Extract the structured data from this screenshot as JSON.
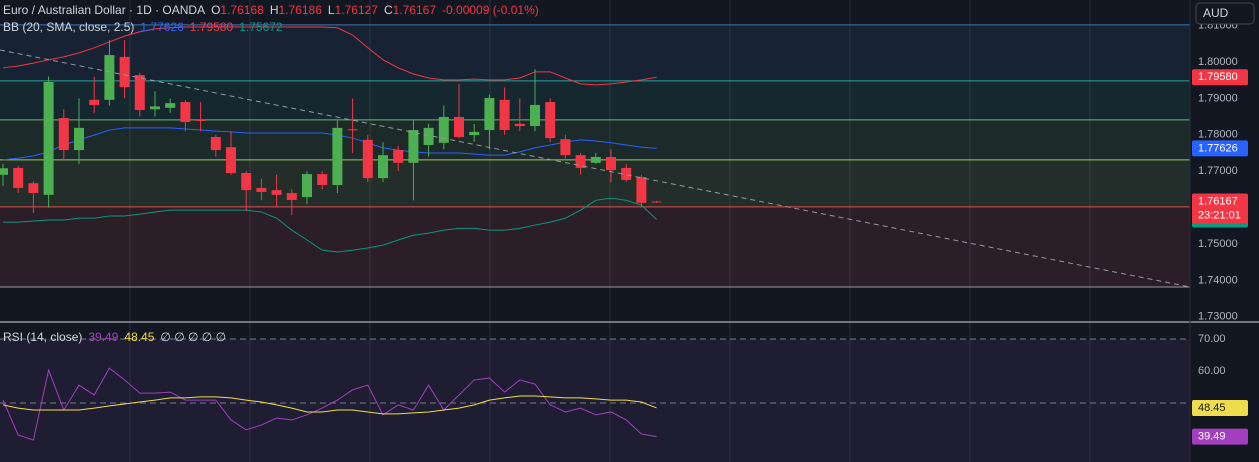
{
  "header": {
    "title": "Euro / Australian Dollar · 1D · OANDA",
    "ohlc": [
      {
        "label": "O",
        "value": "1.76168"
      },
      {
        "label": "H",
        "value": "1.76186"
      },
      {
        "label": "L",
        "value": "1.76127"
      },
      {
        "label": "C",
        "value": "1.76167"
      }
    ],
    "change": "-0.00009 (-0.01%)"
  },
  "currency_button": "AUD",
  "chart_data": [
    {
      "type": "candlestick",
      "indicator": "BB (20, SMA, close, 2.5)",
      "up_color": "#4caf50",
      "down_color": "#f23645",
      "open": [
        1.769,
        1.7709,
        1.7667,
        1.7635,
        1.7846,
        1.7758,
        1.7896,
        1.7896,
        1.8014,
        1.7964,
        1.787,
        1.7874,
        1.789,
        1.7841,
        1.7794,
        1.7766,
        1.7695,
        1.7654,
        1.7648,
        1.764,
        1.7629,
        1.7692,
        1.7662,
        1.7815,
        1.7786,
        1.7681,
        1.7758,
        1.7723,
        1.7772,
        1.7778,
        1.7849,
        1.7799,
        1.7813,
        1.7896,
        1.783,
        1.7824,
        1.789,
        1.7788,
        1.7744,
        1.7723,
        1.7739,
        1.7709,
        1.7684,
        1.76168
      ],
      "high": [
        1.772,
        1.7715,
        1.7672,
        1.796,
        1.787,
        1.79,
        1.796,
        1.806,
        1.806,
        1.797,
        1.792,
        1.79,
        1.7895,
        1.789,
        1.78,
        1.781,
        1.77,
        1.768,
        1.769,
        1.765,
        1.77,
        1.77,
        1.784,
        1.79,
        1.78,
        1.778,
        1.777,
        1.784,
        1.783,
        1.788,
        1.794,
        1.783,
        1.791,
        1.793,
        1.79,
        1.798,
        1.79,
        1.78,
        1.775,
        1.775,
        1.776,
        1.772,
        1.769,
        1.76186
      ],
      "low": [
        1.766,
        1.764,
        1.7585,
        1.76,
        1.773,
        1.772,
        1.786,
        1.788,
        1.79,
        1.785,
        1.785,
        1.786,
        1.781,
        1.781,
        1.774,
        1.769,
        1.759,
        1.762,
        1.76,
        1.758,
        1.761,
        1.765,
        1.764,
        1.775,
        1.767,
        1.767,
        1.77,
        1.762,
        1.774,
        1.776,
        1.779,
        1.778,
        1.776,
        1.78,
        1.781,
        1.781,
        1.778,
        1.7735,
        1.769,
        1.772,
        1.767,
        1.767,
        1.76,
        1.76127
      ],
      "close": [
        1.7708,
        1.7654,
        1.764,
        1.7945,
        1.7758,
        1.7819,
        1.7882,
        1.8019,
        1.7931,
        1.7868,
        1.7878,
        1.7887,
        1.7835,
        1.7838,
        1.7758,
        1.7695,
        1.7648,
        1.7643,
        1.7635,
        1.7621,
        1.7692,
        1.7662,
        1.7819,
        1.7813,
        1.7681,
        1.7744,
        1.7723,
        1.7813,
        1.7819,
        1.7849,
        1.7794,
        1.7808,
        1.7901,
        1.7813,
        1.7824,
        1.7882,
        1.7791,
        1.7744,
        1.7709,
        1.7739,
        1.7703,
        1.7676,
        1.7613,
        1.76167
      ],
      "last_price_label": "1.76167",
      "countdown": "23:21:01",
      "series": [
        {
          "color": "#2962ff",
          "last_value_label": "1.77626",
          "values": [
            1.7731,
            1.7736,
            1.7742,
            1.7753,
            1.7772,
            1.7786,
            1.7799,
            1.7813,
            1.7819,
            1.7819,
            1.7819,
            1.7819,
            1.7816,
            1.7813,
            1.781,
            1.7808,
            1.7805,
            1.7805,
            1.7805,
            1.7805,
            1.7805,
            1.7805,
            1.7799,
            1.7791,
            1.7778,
            1.7764,
            1.7758,
            1.7753,
            1.775,
            1.775,
            1.775,
            1.7747,
            1.7744,
            1.7744,
            1.7753,
            1.7764,
            1.7772,
            1.778,
            1.7786,
            1.7783,
            1.7778,
            1.7772,
            1.7766,
            1.77626
          ]
        },
        {
          "color": "#f23645",
          "last_value_label": "1.79580",
          "values": [
            1.7984,
            1.7989,
            1.7997,
            1.8006,
            1.8014,
            1.8025,
            1.8039,
            1.8055,
            1.8071,
            1.8083,
            1.8091,
            1.8094,
            1.8096,
            1.8096,
            1.8096,
            1.8096,
            1.8096,
            1.8096,
            1.8096,
            1.8096,
            1.8096,
            1.8096,
            1.8094,
            1.8074,
            1.8039,
            1.8006,
            1.7984,
            1.7967,
            1.7956,
            1.7951,
            1.7951,
            1.7953,
            1.7951,
            1.7951,
            1.7956,
            1.7973,
            1.7973,
            1.7956,
            1.794,
            1.7937,
            1.794,
            1.7945,
            1.7951,
            1.7958
          ]
        },
        {
          "color": "#089981",
          "last_value_label": "1.75672",
          "values": [
            1.756,
            1.756,
            1.7563,
            1.7566,
            1.7566,
            1.7571,
            1.7571,
            1.7577,
            1.7577,
            1.7582,
            1.7588,
            1.7593,
            1.7593,
            1.7593,
            1.7593,
            1.7593,
            1.7593,
            1.7588,
            1.7571,
            1.7538,
            1.7511,
            1.7483,
            1.7478,
            1.7483,
            1.7489,
            1.7497,
            1.7511,
            1.7524,
            1.753,
            1.7538,
            1.7543,
            1.7543,
            1.7538,
            1.7538,
            1.7543,
            1.7552,
            1.756,
            1.7571,
            1.7593,
            1.762,
            1.7626,
            1.762,
            1.7607,
            1.75672
          ]
        }
      ],
      "levels": [
        {
          "value": 1.8102,
          "color": "#3d7ab8"
        },
        {
          "value": 1.7948,
          "color": "#26a69a"
        },
        {
          "value": 1.7841,
          "color": "#66bb6a"
        },
        {
          "value": 1.7731,
          "color": "#9ccc65"
        },
        {
          "value": 1.7602,
          "color": "#e05252"
        },
        {
          "value": 1.7382,
          "color": "#9598a1"
        }
      ],
      "ylim": [
        1.72857,
        1.81703
      ],
      "yticks": [
        {
          "value": 1.73,
          "label": "1.73000"
        },
        {
          "value": 1.74,
          "label": "1.74000"
        },
        {
          "value": 1.75,
          "label": "1.75000"
        },
        {
          "value": 1.77,
          "label": "1.77000"
        },
        {
          "value": 1.78,
          "label": "1.78000"
        },
        {
          "value": 1.79,
          "label": "1.79000"
        },
        {
          "value": 1.8,
          "label": "1.80000"
        },
        {
          "value": 1.81,
          "label": "1.81000"
        }
      ]
    },
    {
      "type": "line",
      "indicator": "RSI (14, close)",
      "extra": "∅ ∅ ∅ ∅ ∅",
      "series": [
        {
          "color": "#a33fbf",
          "last_value_label": "39.49",
          "values": [
            50.9,
            40.0,
            38.4,
            60.3,
            47.8,
            55.6,
            52.5,
            60.9,
            57.2,
            53.1,
            53.1,
            53.4,
            50.9,
            50.9,
            50.9,
            44.7,
            41.6,
            43.1,
            45.3,
            44.7,
            46.3,
            48.4,
            50.9,
            54.1,
            55.6,
            46.3,
            49.4,
            47.8,
            55.6,
            47.8,
            52.5,
            57.2,
            57.8,
            53.4,
            57.2,
            55.9,
            49.4,
            47.2,
            48.4,
            46.3,
            47.2,
            44.7,
            40.3,
            39.49
          ]
        },
        {
          "color": "#f0dd4c",
          "last_value_label": "48.45",
          "values": [
            49.4,
            48.4,
            47.8,
            47.8,
            47.8,
            47.8,
            48.4,
            49.1,
            49.7,
            50.3,
            50.9,
            51.6,
            51.6,
            51.9,
            51.9,
            51.6,
            50.9,
            50.3,
            49.4,
            48.4,
            47.2,
            47.2,
            47.8,
            47.8,
            47.2,
            46.6,
            46.6,
            46.9,
            47.2,
            47.8,
            48.4,
            49.4,
            50.9,
            51.6,
            52.2,
            52.2,
            51.9,
            51.6,
            51.6,
            51.3,
            50.9,
            50.9,
            50.3,
            48.45
          ]
        }
      ],
      "bands": [
        70,
        50
      ],
      "ylim": [
        31.56,
        75.31
      ],
      "yticks": [
        {
          "value": 60,
          "label": "60.00"
        },
        {
          "value": 70,
          "label": "70.00"
        }
      ]
    }
  ]
}
